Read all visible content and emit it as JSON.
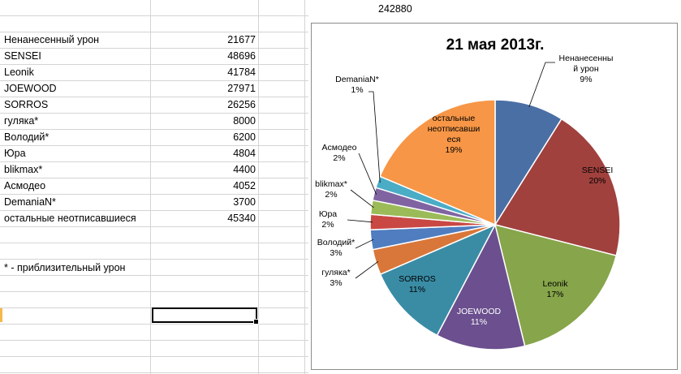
{
  "sheet": {
    "top_value": "242880",
    "footnote": "* - приблизительный урон",
    "rows": [
      {
        "name": "Ненанесенный урон",
        "value": "21677"
      },
      {
        "name": "SENSEI",
        "value": "48696"
      },
      {
        "name": "Leonik",
        "value": "41784"
      },
      {
        "name": "JOEWOOD",
        "value": "27971"
      },
      {
        "name": "SORROS",
        "value": "26256"
      },
      {
        "name": "гуляка*",
        "value": "8000"
      },
      {
        "name": "Володий*",
        "value": "6200"
      },
      {
        "name": "Юра",
        "value": "4804"
      },
      {
        "name": "blikmax*",
        "value": "4400"
      },
      {
        "name": "Асмодео",
        "value": "4052"
      },
      {
        "name": "DemaniaN*",
        "value": "3700"
      },
      {
        "name": "остальные неотписавшиеся",
        "value": "45340"
      }
    ]
  },
  "chart_data": {
    "type": "pie",
    "title": "21 мая 2013г.",
    "categories": [
      "Ненанесенный урон",
      "SENSEI",
      "Leonik",
      "JOEWOOD",
      "SORROS",
      "гуляка*",
      "Володий*",
      "Юра",
      "blikmax*",
      "Асмодео",
      "DemaniaN*",
      "остальные неотписавшиеся"
    ],
    "values": [
      21677,
      48696,
      41784,
      27971,
      26256,
      8000,
      6200,
      4804,
      4400,
      4052,
      3700,
      45340
    ],
    "colors": [
      "#4a6fa5",
      "#a0413e",
      "#87a54a",
      "#6b4f8e",
      "#3a8ca5",
      "#d9773a",
      "#4f7dc0",
      "#c94844",
      "#9bbb59",
      "#8064a2",
      "#4bacc6",
      "#f79646"
    ],
    "labels": [
      [
        "Ненанесенны",
        "й урон",
        "9%"
      ],
      [
        "SENSEI",
        "20%"
      ],
      [
        "Leonik",
        "17%"
      ],
      [
        "JOEWOOD",
        "11%"
      ],
      [
        "SORROS",
        "11%"
      ],
      [
        "гуляка*",
        "3%"
      ],
      [
        "Володий*",
        "3%"
      ],
      [
        "Юра",
        "2%"
      ],
      [
        "blikmax*",
        "2%"
      ],
      [
        "Асмодео",
        "2%"
      ],
      [
        "DemaniaN*",
        "1%"
      ],
      [
        "остальные",
        "неотписавши",
        "еся",
        "19%"
      ]
    ],
    "legend": "none"
  }
}
